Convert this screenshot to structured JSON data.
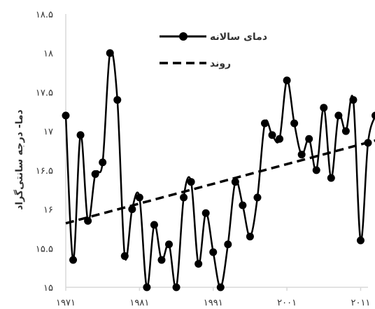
{
  "chart_data": {
    "type": "line",
    "ylabel": "دما- درجه سانتی‌گراد",
    "xlabel": "",
    "title": "",
    "ylim": [
      15,
      18.5
    ],
    "xlim": [
      1971,
      2012
    ],
    "yticks": [
      15,
      15.5,
      16,
      16.5,
      17,
      17.5,
      18,
      18.5
    ],
    "ytick_labels": [
      "۱۵",
      "۱۵.۵",
      "۱۶",
      "۱۶.۵",
      "۱۷",
      "۱۷.۵",
      "۱۸",
      "۱۸.۵"
    ],
    "xticks": [
      1971,
      1981,
      1991,
      2001,
      2011
    ],
    "xtick_labels": [
      "۱۹۷۱",
      "۱۹۸۱",
      "۱۹۹۱",
      "۲۰۰۱",
      "۲۰۱۱"
    ],
    "grid": false,
    "legend_position": "top-center",
    "colors": {
      "series": "#000000",
      "trend": "#000000",
      "axis": "#d9d9d9",
      "text": "#333333"
    },
    "series": [
      {
        "name": "دمای سالانه",
        "style": "line-marker",
        "x": [
          1971,
          1972,
          1973,
          1974,
          1975,
          1976,
          1977,
          1978,
          1979,
          1980,
          1981,
          1982,
          1983,
          1984,
          1985,
          1986,
          1987,
          1988,
          1989,
          1990,
          1991,
          1992,
          1993,
          1994,
          1995,
          1996,
          1997,
          1998,
          1999,
          2000,
          2001,
          2002,
          2003,
          2004,
          2005,
          2006,
          2007,
          2008,
          2009,
          2010,
          2011,
          2012,
          2013
        ],
        "values": [
          17.2,
          15.35,
          16.95,
          15.85,
          16.45,
          16.6,
          18.0,
          17.4,
          15.4,
          16.0,
          16.15,
          15.0,
          15.8,
          15.35,
          15.55,
          15.0,
          16.15,
          16.35,
          15.3,
          15.95,
          15.45,
          15.0,
          15.55,
          16.35,
          16.05,
          15.65,
          16.15,
          17.1,
          16.95,
          16.9,
          17.65,
          17.1,
          16.7,
          16.9,
          16.5,
          17.3,
          16.4,
          17.2,
          17.0,
          17.4,
          15.6,
          16.85,
          17.2
        ]
      },
      {
        "name": "روند",
        "style": "dashed",
        "x": [
          1971,
          2013
        ],
        "values": [
          15.82,
          16.88
        ]
      }
    ]
  }
}
